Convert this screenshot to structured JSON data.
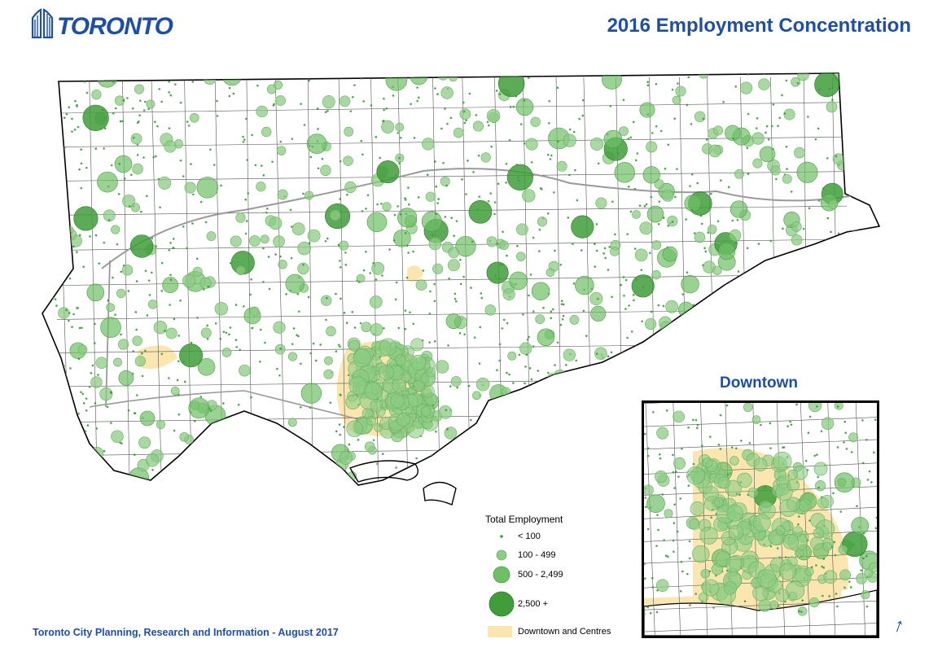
{
  "header": {
    "logo_text": "TORONTO",
    "title": "2016 Employment Concentration"
  },
  "inset": {
    "title": "Downtown"
  },
  "legend": {
    "title": "Total Employment",
    "items": [
      {
        "label": "< 100",
        "color": "#3c9a3c"
      },
      {
        "label": "100 - 499",
        "color": "#8ccb84"
      },
      {
        "label": "500 - 2,499",
        "color": "#6fbf66"
      },
      {
        "label": "2,500 +",
        "color": "#3f9e3a"
      }
    ],
    "area_label": "Downtown and Centres",
    "area_color": "#fbe6b0"
  },
  "footer": {
    "credit": "Toronto City Planning, Research and Information - August 2017"
  },
  "colors": {
    "brand": "#1f4fa3",
    "point_small": "#3c9a3c",
    "point_medium": "#8ccb84",
    "point_large": "#6fbf66",
    "point_xlarge": "#3f9e3a",
    "centres": "#fbe6b0"
  },
  "icons": [
    "toronto-city-hall-logo-icon",
    "north-arrow-icon"
  ]
}
